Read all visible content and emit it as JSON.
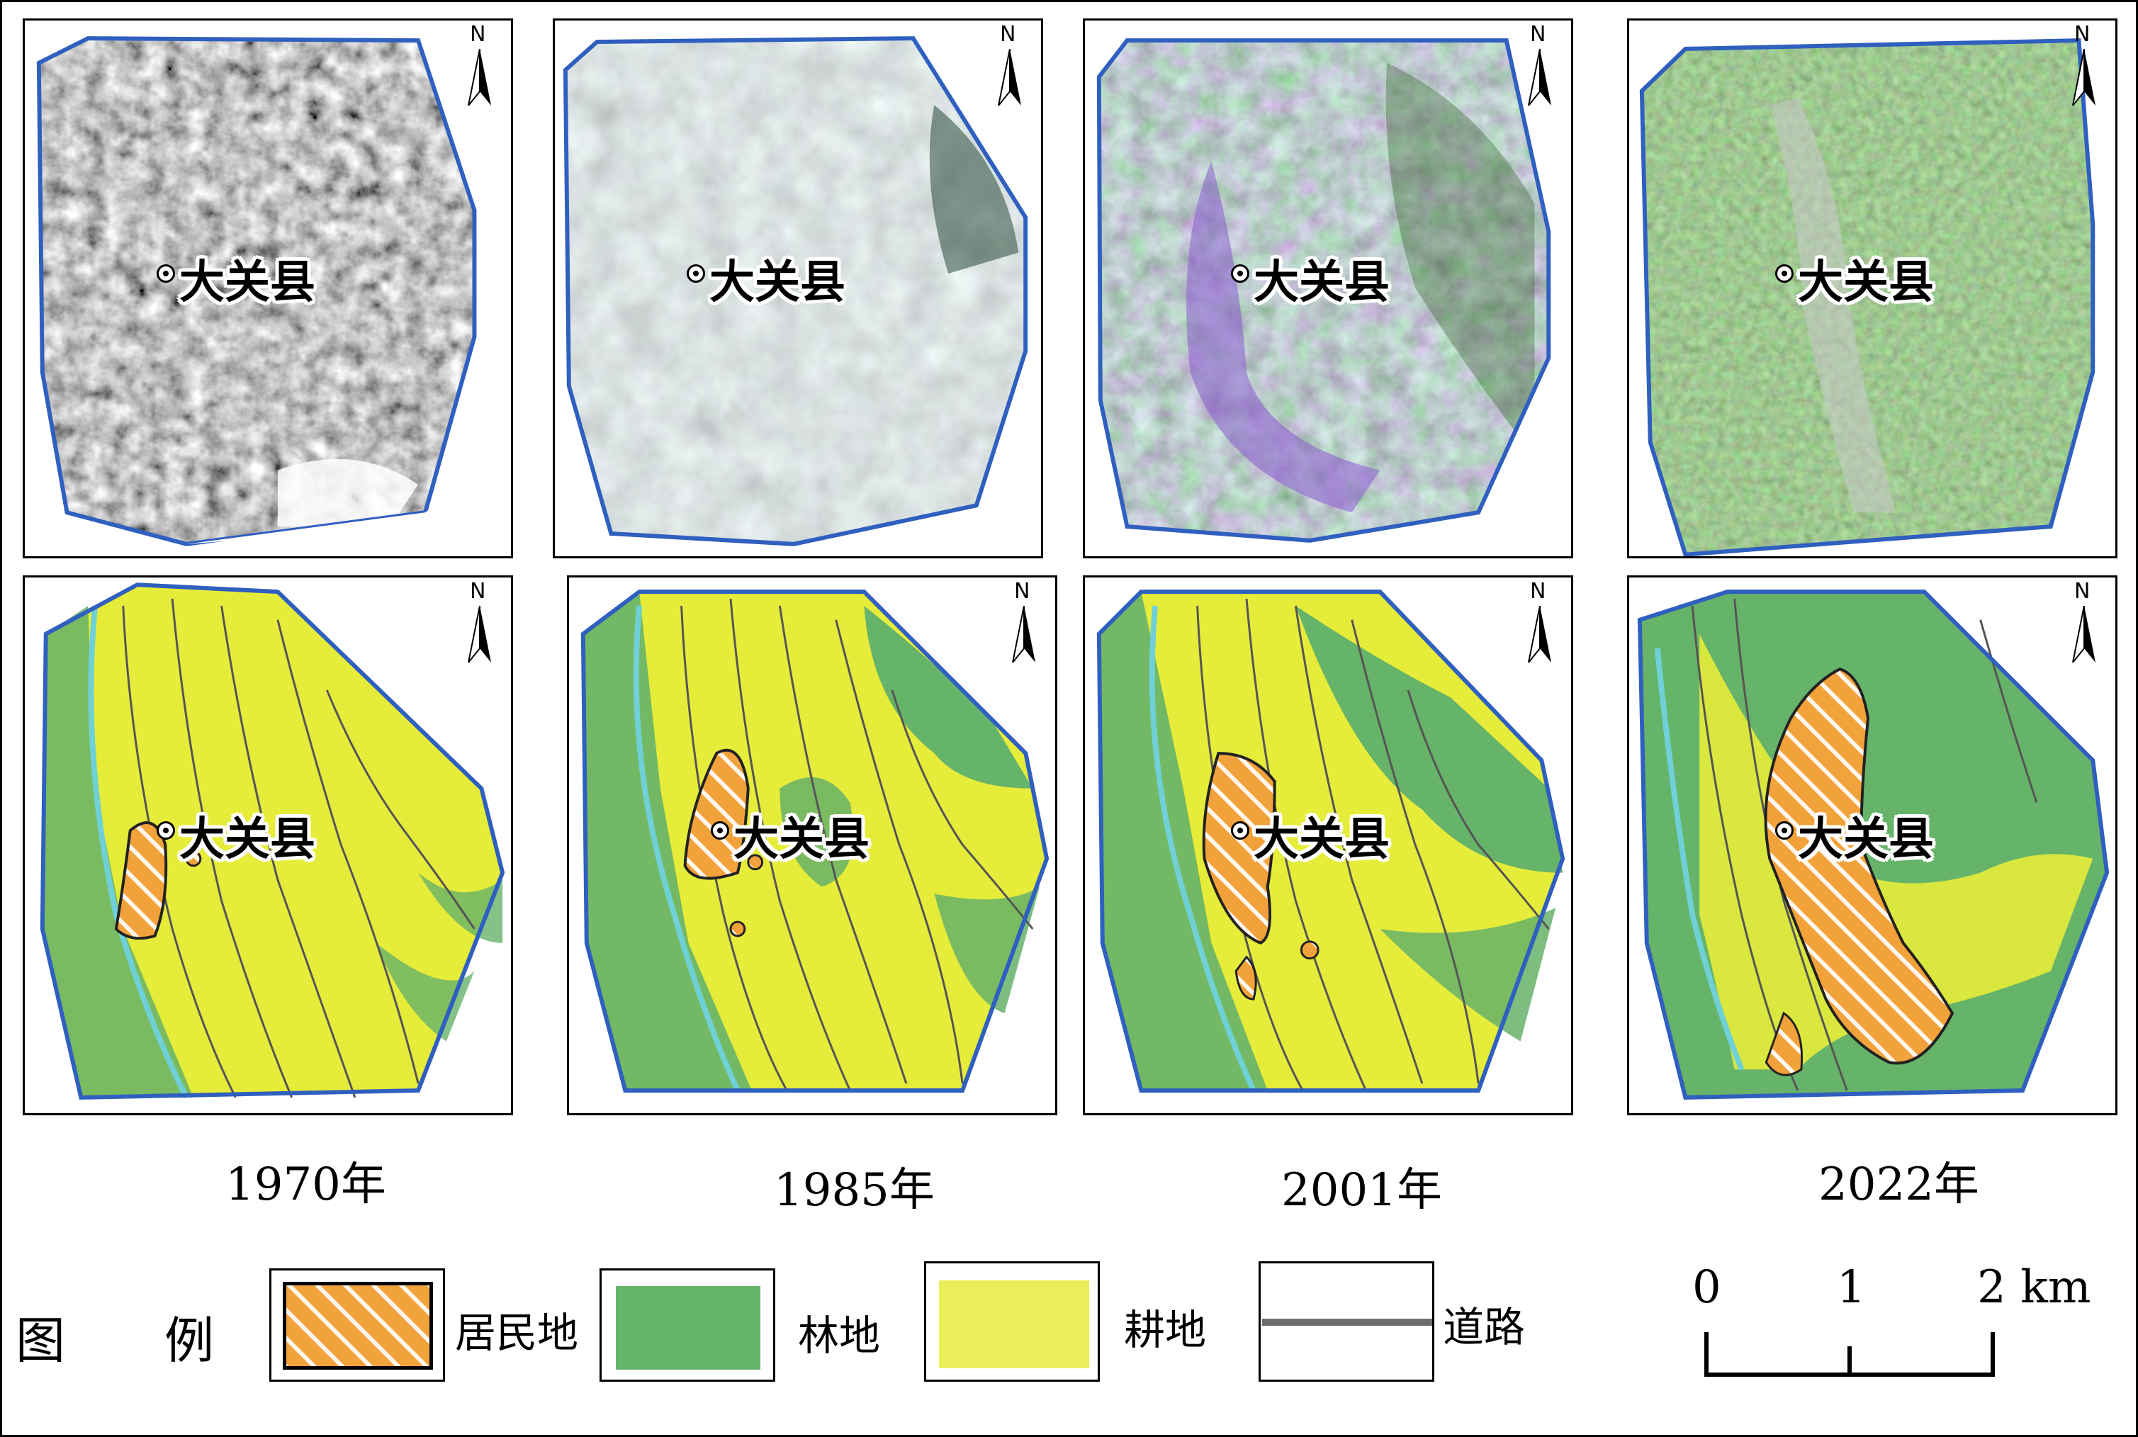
{
  "maps": {
    "county_name": "大关县",
    "north_letter": "N",
    "years": [
      "1970年",
      "1985年",
      "2001年",
      "2022年"
    ]
  },
  "legend": {
    "title_1": "图",
    "title_2": "例",
    "items": [
      {
        "label": "居民地",
        "color": "#f2a23a",
        "pattern": "hatched"
      },
      {
        "label": "林地",
        "color": "#66b36a"
      },
      {
        "label": "耕地",
        "color": "#e9ee5a"
      },
      {
        "label": "道路",
        "color": "#6d6d6d"
      }
    ]
  },
  "scale_bar": {
    "ticks": [
      "0",
      "1",
      "2 km"
    ]
  },
  "colors": {
    "boundary": "#2f5fbf",
    "forest": "#66b36a",
    "farmland": "#e6ec3a",
    "settlement": "#f2a23a",
    "road": "#555555",
    "river": "#6fd1d6"
  }
}
